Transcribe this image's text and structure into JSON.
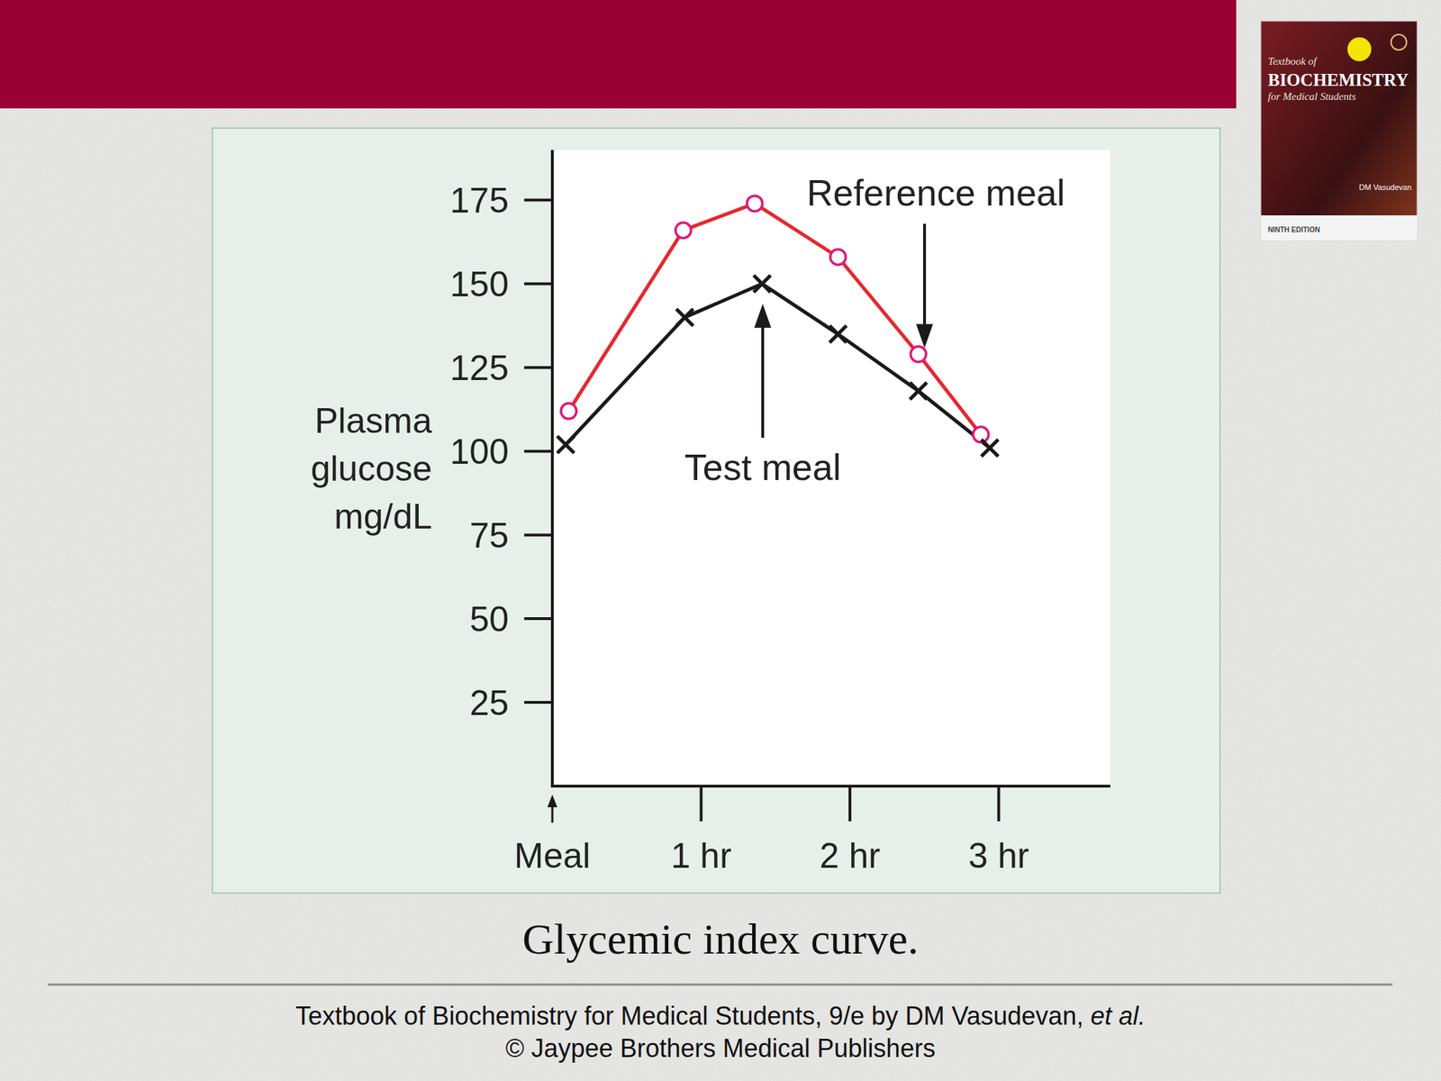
{
  "chart_data": {
    "type": "line",
    "title": "Glycemic index curve.",
    "y_label": "Plasma glucose mg/dL",
    "xlim": [
      0,
      3.75
    ],
    "xticks": [
      {
        "value": 0,
        "label": "Meal"
      },
      {
        "value": 1,
        "label": "1 hr"
      },
      {
        "value": 2,
        "label": "2 hr"
      },
      {
        "value": 3,
        "label": "3 hr"
      }
    ],
    "ylim": [
      0,
      190
    ],
    "yticks": [
      25,
      50,
      75,
      100,
      125,
      150,
      175
    ],
    "grid": false,
    "series": [
      {
        "name": "Reference meal",
        "color": "#e8262d",
        "marker": "circle",
        "line_style": "solid",
        "x": [
          0.11,
          0.88,
          1.36,
          1.92,
          2.46,
          2.88
        ],
        "values": [
          112,
          166,
          174,
          158,
          129,
          105
        ]
      },
      {
        "name": "Test meal",
        "color": "#1a1a1a",
        "marker": "x",
        "line_style": "solid",
        "x": [
          0.09,
          0.89,
          1.41,
          1.92,
          2.46,
          2.94
        ],
        "values": [
          102,
          140,
          150,
          135,
          118,
          101
        ]
      }
    ]
  },
  "footer": {
    "source": "Textbook of Biochemistry for Medical Students, 9/e by DM Vasudevan,",
    "source_italic": "et al.",
    "copyright": "© Jaypee Brothers Medical Publishers"
  },
  "cover": {
    "line1": "Textbook of",
    "title": "BIOCHEMISTRY",
    "subtitle": "for Medical Students",
    "author": "DM Vasudevan",
    "edition": "NINTH EDITION"
  }
}
